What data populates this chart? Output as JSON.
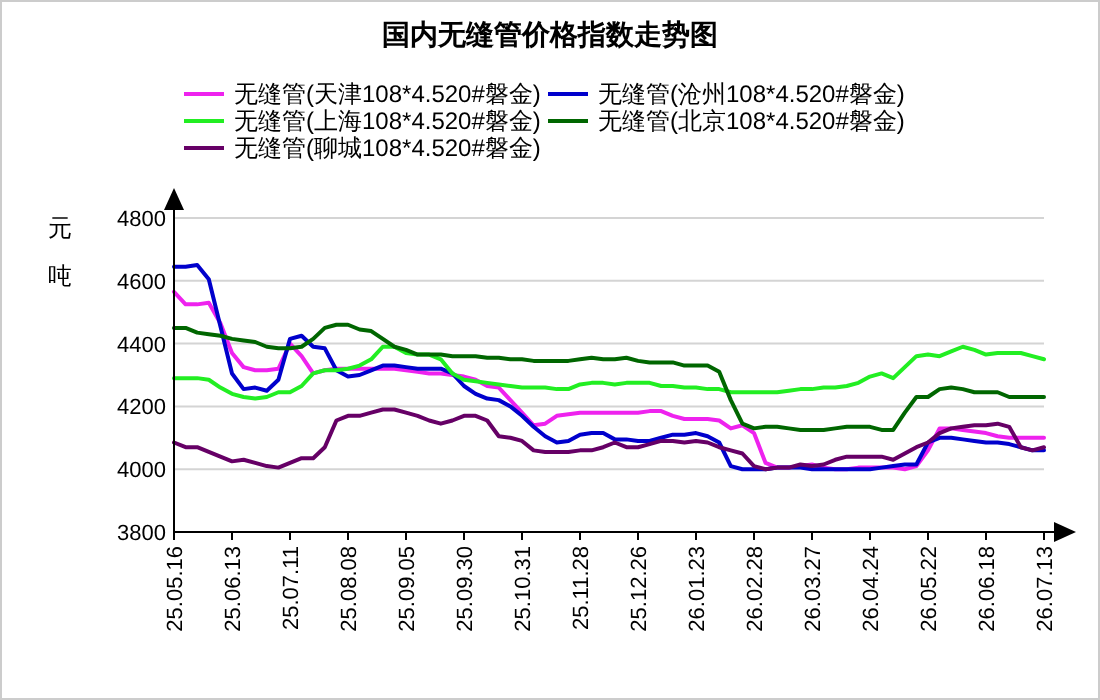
{
  "chart_data": {
    "type": "line",
    "title": "国内无缝管价格指数走势图",
    "ylabel": "元吨",
    "grid": "y",
    "legend": "top",
    "ylim": [
      3800,
      4800
    ],
    "yticks": [
      3800,
      4000,
      4200,
      4400,
      4600,
      4800
    ],
    "categories": [
      "25.05.16",
      null,
      null,
      null,
      null,
      "25.06.13",
      null,
      null,
      null,
      null,
      "25.07.11",
      null,
      null,
      null,
      null,
      "25.08.08",
      null,
      null,
      null,
      null,
      "25.09.05",
      null,
      null,
      null,
      null,
      "25.09.30",
      null,
      null,
      null,
      null,
      "25.10.31",
      null,
      null,
      null,
      null,
      "25.11.28",
      null,
      null,
      null,
      null,
      "25.12.26",
      null,
      null,
      null,
      null,
      "26.01.23",
      null,
      null,
      null,
      null,
      "26.02.28",
      null,
      null,
      null,
      null,
      "26.03.27",
      null,
      null,
      null,
      null,
      "26.04.24",
      null,
      null,
      null,
      null,
      "26.05.22",
      null,
      null,
      null,
      null,
      "26.06.18",
      null,
      null,
      null,
      null,
      "26.07.13"
    ],
    "series": [
      {
        "name": "无缝管(天津108*4.520#磐金)",
        "color": "#ee22ee",
        "values": [
          4565,
          4525,
          4525,
          4530,
          4465,
          4370,
          4325,
          4315,
          4315,
          4320,
          4400,
          4360,
          4305,
          4315,
          4320,
          4320,
          4320,
          4320,
          4320,
          4320,
          4315,
          4310,
          4305,
          4305,
          4300,
          4295,
          4285,
          4265,
          4260,
          4220,
          4180,
          4140,
          4145,
          4170,
          4175,
          4180,
          4180,
          4180,
          4180,
          4180,
          4180,
          4185,
          4185,
          4170,
          4160,
          4160,
          4160,
          4155,
          4130,
          4140,
          4115,
          4020,
          4005,
          4005,
          4010,
          4015,
          4005,
          4000,
          4000,
          4005,
          4005,
          4005,
          4005,
          4000,
          4010,
          4060,
          4130,
          4130,
          4125,
          4120,
          4115,
          4105,
          4100,
          4100,
          4100,
          4100
        ]
      },
      {
        "name": "无缝管(沧州108*4.520#磐金)",
        "color": "#0000cc",
        "values": [
          4645,
          4645,
          4650,
          4605,
          4455,
          4305,
          4255,
          4260,
          4250,
          4285,
          4415,
          4425,
          4390,
          4385,
          4315,
          4295,
          4300,
          4315,
          4330,
          4330,
          4325,
          4320,
          4320,
          4320,
          4305,
          4265,
          4240,
          4225,
          4220,
          4200,
          4170,
          4135,
          4105,
          4085,
          4090,
          4110,
          4115,
          4115,
          4095,
          4095,
          4090,
          4090,
          4100,
          4110,
          4110,
          4115,
          4105,
          4085,
          4010,
          4000,
          4000,
          4000,
          4005,
          4005,
          4005,
          4000,
          4000,
          4000,
          4000,
          4000,
          4000,
          4005,
          4010,
          4015,
          4015,
          4085,
          4100,
          4100,
          4095,
          4090,
          4085,
          4085,
          4080,
          4070,
          4060,
          4060
        ]
      },
      {
        "name": "无缝管(上海108*4.520#磐金)",
        "color": "#22ee22",
        "values": [
          4290,
          4290,
          4290,
          4285,
          4260,
          4240,
          4230,
          4225,
          4230,
          4245,
          4245,
          4265,
          4305,
          4315,
          4315,
          4320,
          4330,
          4350,
          4390,
          4390,
          4370,
          4365,
          4365,
          4350,
          4305,
          4285,
          4280,
          4275,
          4270,
          4265,
          4260,
          4260,
          4260,
          4255,
          4255,
          4270,
          4275,
          4275,
          4270,
          4275,
          4275,
          4275,
          4265,
          4265,
          4260,
          4260,
          4255,
          4255,
          4245,
          4245,
          4245,
          4245,
          4245,
          4250,
          4255,
          4255,
          4260,
          4260,
          4265,
          4275,
          4295,
          4305,
          4290,
          4325,
          4360,
          4365,
          4360,
          4375,
          4390,
          4380,
          4365,
          4370,
          4370,
          4370,
          4360,
          4350
        ]
      },
      {
        "name": "无缝管(北京108*4.520#磐金)",
        "color": "#006600",
        "values": [
          4450,
          4450,
          4435,
          4430,
          4425,
          4415,
          4410,
          4405,
          4390,
          4385,
          4385,
          4390,
          4415,
          4450,
          4460,
          4460,
          4445,
          4440,
          4415,
          4390,
          4380,
          4365,
          4365,
          4365,
          4360,
          4360,
          4360,
          4355,
          4355,
          4350,
          4350,
          4345,
          4345,
          4345,
          4345,
          4350,
          4355,
          4350,
          4350,
          4355,
          4345,
          4340,
          4340,
          4340,
          4330,
          4330,
          4330,
          4310,
          4220,
          4145,
          4130,
          4135,
          4135,
          4130,
          4125,
          4125,
          4125,
          4130,
          4135,
          4135,
          4135,
          4125,
          4125,
          4180,
          4230,
          4230,
          4255,
          4260,
          4255,
          4245,
          4245,
          4245,
          4230,
          4230,
          4230,
          4230
        ]
      },
      {
        "name": "无缝管(聊城108*4.520#磐金)",
        "color": "#660066",
        "values": [
          4085,
          4070,
          4070,
          4055,
          4040,
          4025,
          4030,
          4020,
          4010,
          4005,
          4020,
          4035,
          4035,
          4070,
          4155,
          4170,
          4170,
          4180,
          4190,
          4190,
          4180,
          4170,
          4155,
          4145,
          4155,
          4170,
          4170,
          4155,
          4105,
          4100,
          4090,
          4060,
          4055,
          4055,
          4055,
          4060,
          4060,
          4070,
          4085,
          4070,
          4070,
          4080,
          4090,
          4090,
          4085,
          4090,
          4085,
          4070,
          4060,
          4050,
          4010,
          4000,
          4005,
          4005,
          4015,
          4010,
          4015,
          4030,
          4040,
          4040,
          4040,
          4040,
          4030,
          4050,
          4070,
          4085,
          4115,
          4130,
          4135,
          4140,
          4140,
          4145,
          4135,
          4070,
          4060,
          4070
        ]
      }
    ]
  }
}
